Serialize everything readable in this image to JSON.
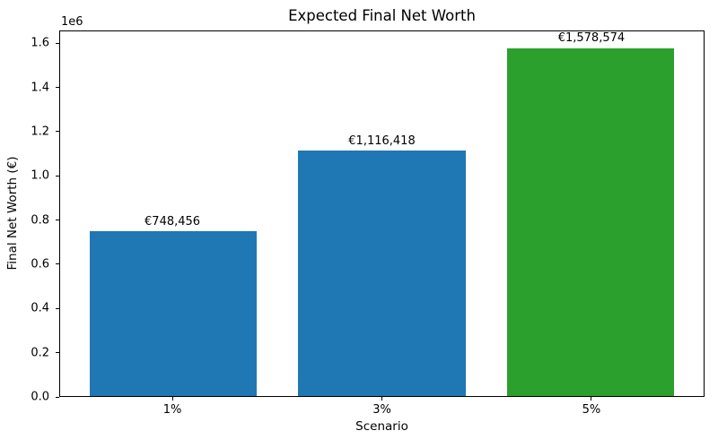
{
  "chart_data": {
    "type": "bar",
    "title": "Expected Final Net Worth",
    "xlabel": "Scenario",
    "ylabel": "Final Net Worth (€)",
    "y_offset_label": "1e6",
    "categories": [
      "1%",
      "3%",
      "5%"
    ],
    "values": [
      748456,
      1116418,
      1578574
    ],
    "bar_labels": [
      "€748,456",
      "€1,116,418",
      "€1,578,574"
    ],
    "bar_colors": [
      "#1f77b4",
      "#1f77b4",
      "#2ca02c"
    ],
    "ylim": [
      0,
      1657503
    ],
    "yticks": [
      0,
      200000,
      400000,
      600000,
      800000,
      1000000,
      1200000,
      1400000,
      1600000
    ],
    "ytick_labels": [
      "0.0",
      "0.2",
      "0.4",
      "0.6",
      "0.8",
      "1.0",
      "1.2",
      "1.4",
      "1.6"
    ],
    "xlim_units": [
      -0.54,
      2.54
    ],
    "bar_width_units": 0.8,
    "grid": false,
    "legend_position": "none",
    "colors": {
      "blue_bar": "#1f77b4",
      "green_bar": "#2ca02c",
      "axis": "#000000",
      "background": "#ffffff"
    }
  }
}
